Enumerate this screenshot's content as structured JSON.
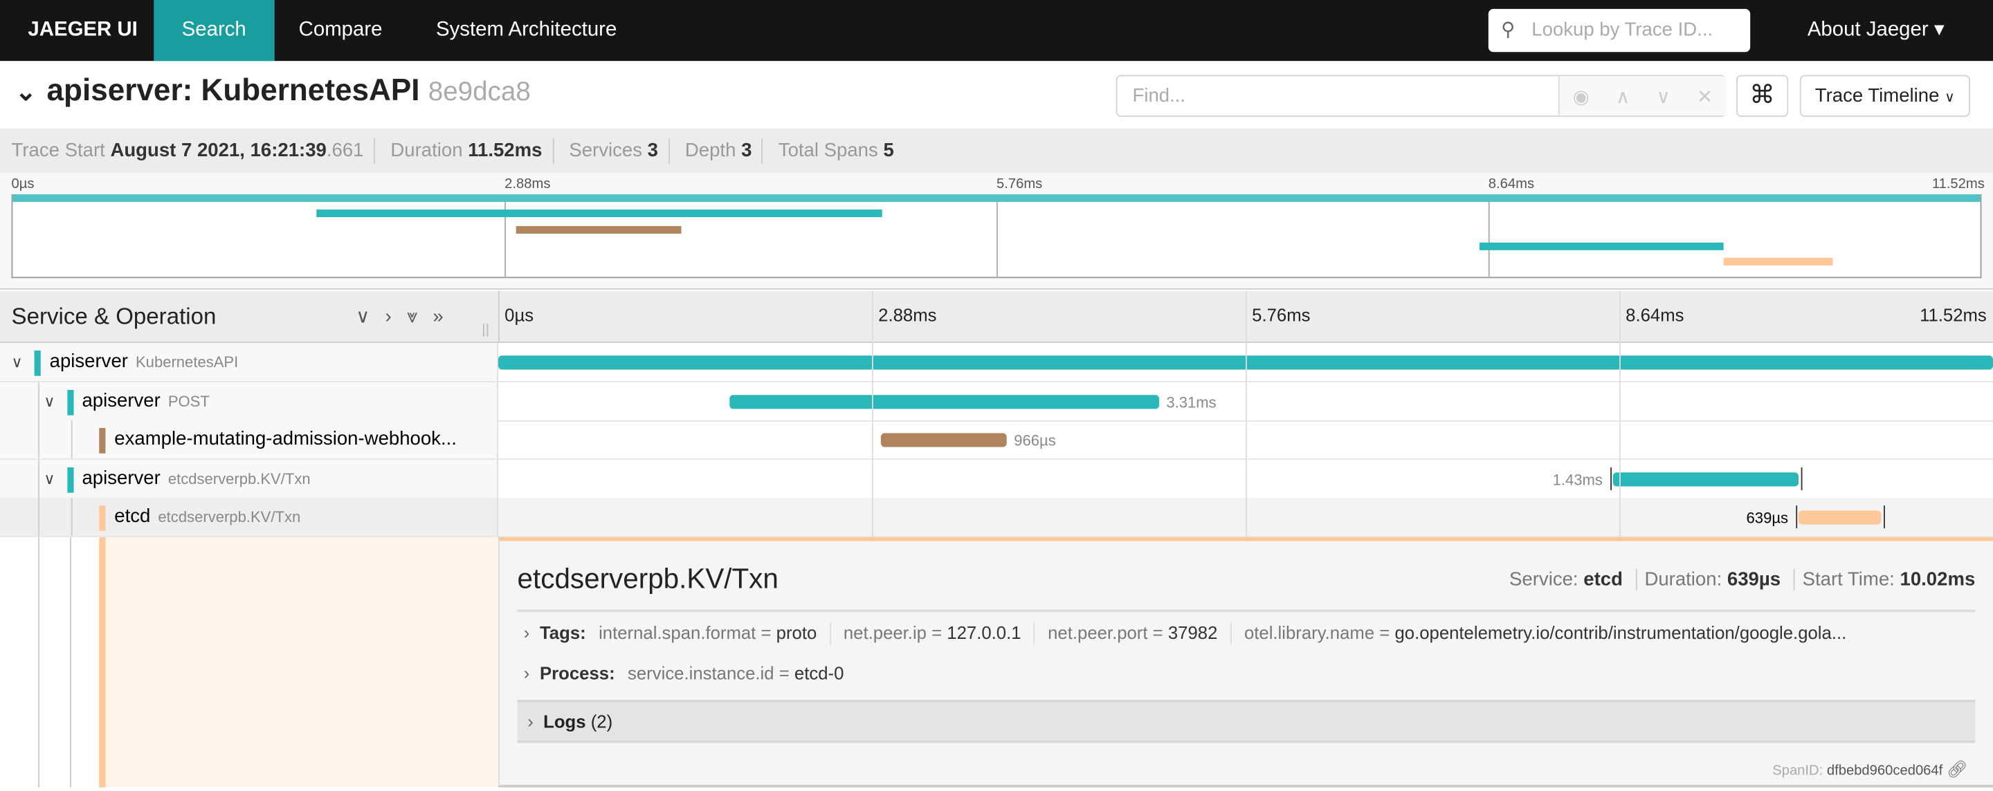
{
  "nav": {
    "brand": "JAEGER UI",
    "tabs": [
      "Search",
      "Compare",
      "System Architecture"
    ],
    "active_tab": "Search",
    "lookup_placeholder": "Lookup by Trace ID...",
    "about": "About Jaeger ▾"
  },
  "header": {
    "title": "apiserver: KubernetesAPI",
    "trace_id": "8e9dca8",
    "find_placeholder": "Find...",
    "view_select": "Trace Timeline"
  },
  "trace_info": {
    "start_label": "Trace Start",
    "start_value": "August 7 2021, 16:21:39",
    "start_ms": ".661",
    "duration_label": "Duration",
    "duration": "11.52ms",
    "services_label": "Services",
    "services": "3",
    "depth_label": "Depth",
    "depth": "3",
    "spans_label": "Total Spans",
    "spans": "5"
  },
  "ticks": [
    "0µs",
    "2.88ms",
    "5.76ms",
    "8.64ms",
    "11.52ms"
  ],
  "column_header": "Service & Operation",
  "total_ms": 11.52,
  "spans": [
    {
      "service": "apiserver",
      "operation": "KubernetesAPI",
      "depth": 0,
      "color": "#2ab7b9",
      "start_ms": 0,
      "duration_ms": 11.52,
      "label": "",
      "collapsible": true
    },
    {
      "service": "apiserver",
      "operation": "POST",
      "depth": 1,
      "color": "#2ab7b9",
      "start_ms": 1.78,
      "duration_ms": 3.31,
      "label": "3.31ms",
      "label_side": "right",
      "collapsible": true
    },
    {
      "service": "example-mutating-admission-webhook...",
      "operation": "",
      "depth": 2,
      "color": "#b0845c",
      "start_ms": 2.95,
      "duration_ms": 0.966,
      "label": "966µs",
      "label_side": "right",
      "collapsible": false
    },
    {
      "service": "apiserver",
      "operation": "etcdserverpb.KV/Txn",
      "depth": 1,
      "color": "#2ab7b9",
      "start_ms": 8.59,
      "duration_ms": 1.43,
      "label": "1.43ms",
      "label_side": "left",
      "collapsible": true
    },
    {
      "service": "etcd",
      "operation": "etcdserverpb.KV/Txn",
      "depth": 2,
      "color": "#ffc898",
      "start_ms": 10.02,
      "duration_ms": 0.639,
      "label": "639µs",
      "label_side": "left",
      "collapsible": false
    }
  ],
  "detail": {
    "operation": "etcdserverpb.KV/Txn",
    "service_label": "Service:",
    "service": "etcd",
    "duration_label": "Duration:",
    "duration": "639µs",
    "start_label": "Start Time:",
    "start": "10.02ms",
    "tags_label": "Tags:",
    "tags": [
      [
        "internal.span.format",
        "proto"
      ],
      [
        "net.peer.ip",
        "127.0.0.1"
      ],
      [
        "net.peer.port",
        "37982"
      ],
      [
        "otel.library.name",
        "go.opentelemetry.io/contrib/instrumentation/google.gola..."
      ]
    ],
    "process_label": "Process:",
    "process": [
      [
        "service.instance.id",
        "etcd-0"
      ]
    ],
    "logs_label": "Logs",
    "logs_count": "(2)",
    "spanid_label": "SpanID:",
    "spanid": "dfbebd960ced064f"
  }
}
